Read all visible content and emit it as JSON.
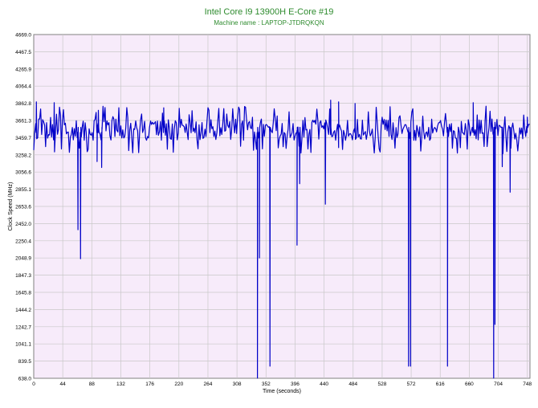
{
  "chart_data": {
    "type": "line",
    "title": "Intel Core I9 13900H E-Core #19",
    "subtitle": "Machine name : LAPTOP-JTDRQKQN",
    "xlabel": "Time (seconds)",
    "ylabel": "Clock Speed (MHz)",
    "xlim": [
      0,
      752
    ],
    "ylim": [
      638.0,
      4669.0
    ],
    "grid": true,
    "x_ticks": [
      0,
      44,
      88,
      132,
      176,
      220,
      264,
      308,
      352,
      396,
      440,
      484,
      528,
      572,
      616,
      660,
      704,
      748
    ],
    "y_ticks": [
      638.0,
      839.5,
      1041.1,
      1242.7,
      1444.2,
      1645.8,
      1847.3,
      2048.9,
      2250.4,
      2452.0,
      2653.6,
      2855.1,
      3056.6,
      3258.2,
      3459.7,
      3661.3,
      3862.8,
      4064.4,
      4265.9,
      4467.5,
      4669.0
    ],
    "series": [
      {
        "color": "#0000c8",
        "baseline": 3560,
        "dips": [
          {
            "x": 67,
            "y": 2380
          },
          {
            "x": 71,
            "y": 2040
          },
          {
            "x": 96,
            "y": 3180
          },
          {
            "x": 103,
            "y": 3110
          },
          {
            "x": 339,
            "y": 640
          },
          {
            "x": 342,
            "y": 2050
          },
          {
            "x": 358,
            "y": 780
          },
          {
            "x": 399,
            "y": 2200
          },
          {
            "x": 403,
            "y": 2920
          },
          {
            "x": 442,
            "y": 2680
          },
          {
            "x": 568,
            "y": 780
          },
          {
            "x": 571,
            "y": 780
          },
          {
            "x": 627,
            "y": 780
          },
          {
            "x": 697,
            "y": 640
          },
          {
            "x": 699,
            "y": 1270
          },
          {
            "x": 710,
            "y": 3120
          },
          {
            "x": 722,
            "y": 2820
          }
        ],
        "peaks": [
          {
            "x": 4,
            "y": 3880
          },
          {
            "x": 31,
            "y": 3870
          },
          {
            "x": 98,
            "y": 3780
          },
          {
            "x": 197,
            "y": 3810
          },
          {
            "x": 450,
            "y": 3900
          },
          {
            "x": 462,
            "y": 3880
          },
          {
            "x": 487,
            "y": 3860
          },
          {
            "x": 666,
            "y": 3870
          },
          {
            "x": 748,
            "y": 3700
          }
        ]
      }
    ]
  }
}
